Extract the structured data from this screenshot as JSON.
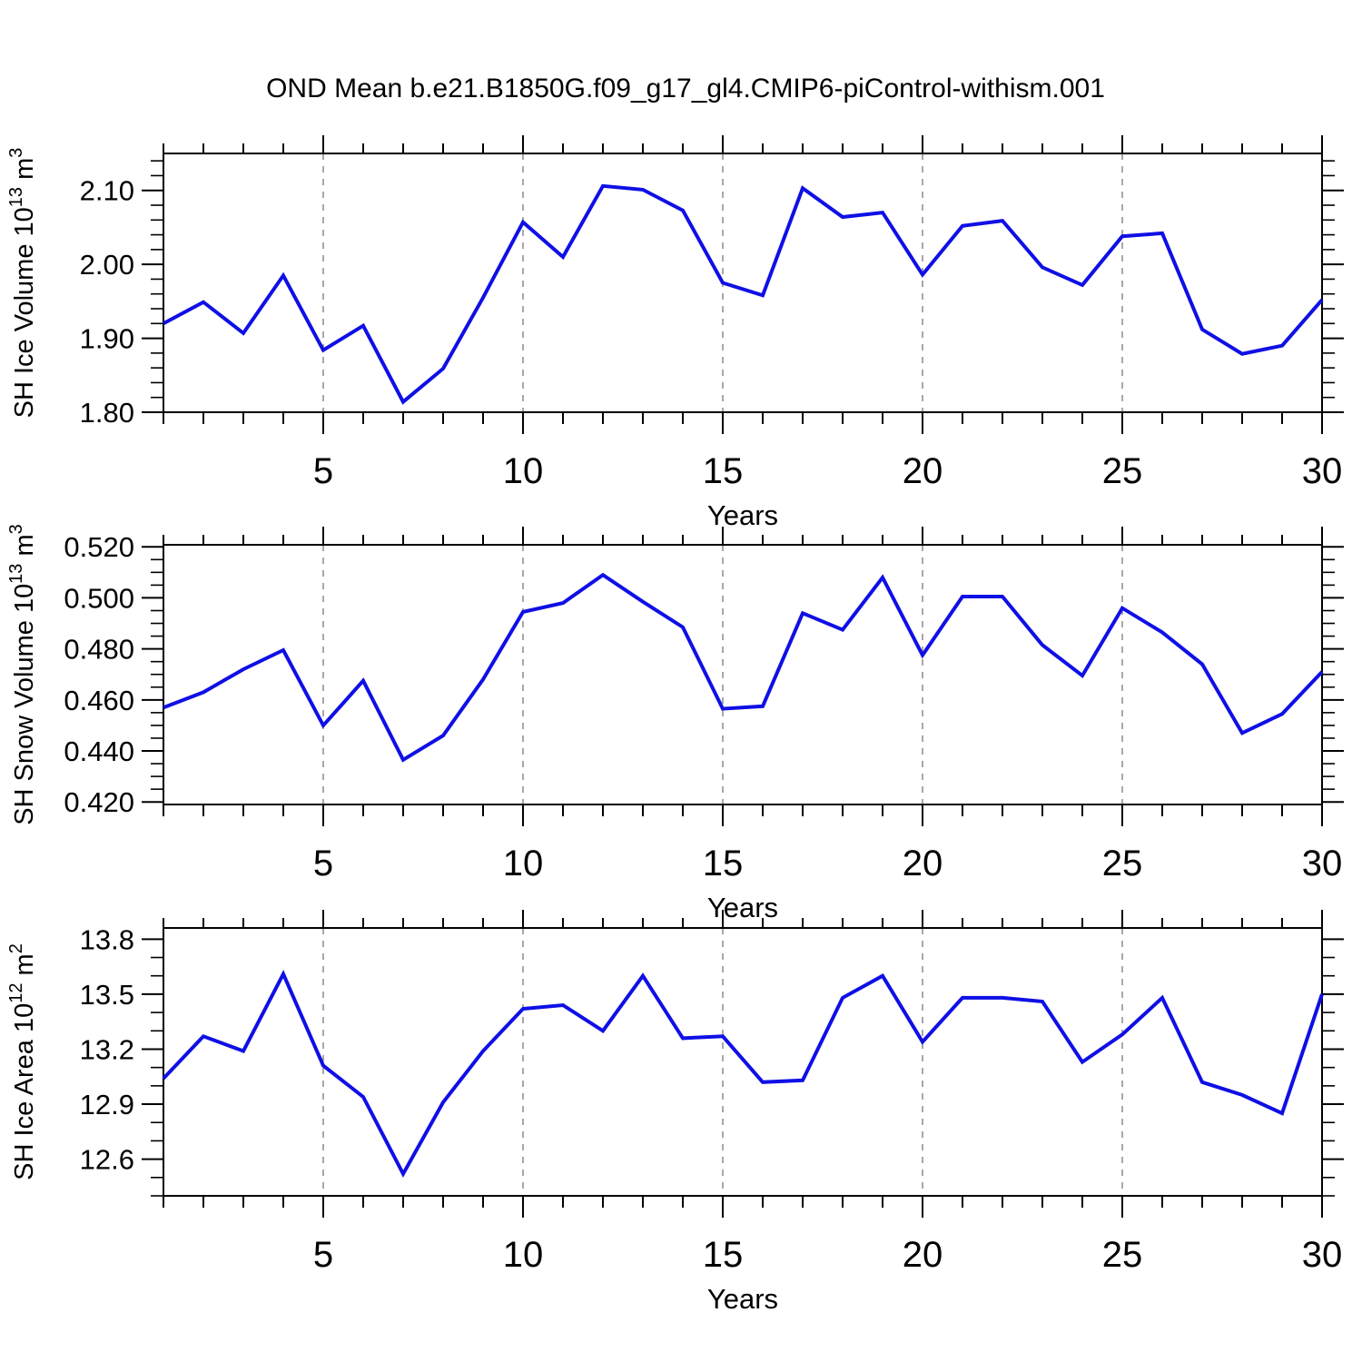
{
  "title": "OND Mean b.e21.B1850G.f09_g17_gl4.CMIP6-piControl-withism.001",
  "colors": {
    "line": "#0f0fe6",
    "grid": "#8c8c8c",
    "axis": "#000000",
    "background": "#ffffff"
  },
  "x_axis": {
    "label": "Years",
    "range": [
      1,
      30
    ],
    "major_ticks": [
      5,
      10,
      15,
      20,
      25,
      30
    ],
    "major_tick_labels": [
      "5",
      "10",
      "15",
      "20",
      "25",
      "30"
    ],
    "minor_step": 1,
    "grid_years": [
      5,
      10,
      15,
      20,
      25
    ]
  },
  "chart_data": [
    {
      "type": "line",
      "name": "sh-ice-volume",
      "ylabel_text": "SH Ice Volume 10^13 m^3",
      "ylabel_segments": [
        [
          "t",
          "SH Ice Volume 10"
        ],
        [
          "s",
          "13"
        ],
        [
          "t",
          " m"
        ],
        [
          "s",
          "3"
        ]
      ],
      "xlabel": "Years",
      "x": [
        1,
        2,
        3,
        4,
        5,
        6,
        7,
        8,
        9,
        10,
        11,
        12,
        13,
        14,
        15,
        16,
        17,
        18,
        19,
        20,
        21,
        22,
        23,
        24,
        25,
        26,
        27,
        28,
        29,
        30
      ],
      "values": [
        1.92,
        1.949,
        1.907,
        1.985,
        1.884,
        1.917,
        1.814,
        1.859,
        1.955,
        2.057,
        2.01,
        2.106,
        2.101,
        2.073,
        1.975,
        1.958,
        2.103,
        2.064,
        2.07,
        1.986,
        2.052,
        2.059,
        1.996,
        1.972,
        2.038,
        2.042,
        1.912,
        1.879,
        1.89,
        1.952
      ],
      "ylim": [
        1.8,
        2.15
      ],
      "ytick_values": [
        1.8,
        1.9,
        2.0,
        2.1
      ],
      "ytick_labels": [
        "1.80",
        "1.90",
        "2.00",
        "2.10"
      ],
      "yminor_step": 0.02,
      "grid": "vertical-dashed",
      "legend": "none"
    },
    {
      "type": "line",
      "name": "sh-snow-volume",
      "ylabel_text": "SH Snow Volume 10^13 m^3",
      "ylabel_segments": [
        [
          "t",
          "SH Snow Volume 10"
        ],
        [
          "s",
          "13"
        ],
        [
          "t",
          " m"
        ],
        [
          "s",
          "3"
        ]
      ],
      "xlabel": "Years",
      "x": [
        1,
        2,
        3,
        4,
        5,
        6,
        7,
        8,
        9,
        10,
        11,
        12,
        13,
        14,
        15,
        16,
        17,
        18,
        19,
        20,
        21,
        22,
        23,
        24,
        25,
        26,
        27,
        28,
        29,
        30
      ],
      "values": [
        0.457,
        0.463,
        0.472,
        0.4795,
        0.45,
        0.4675,
        0.4365,
        0.446,
        0.468,
        0.4945,
        0.498,
        0.509,
        0.4985,
        0.4885,
        0.4565,
        0.4575,
        0.494,
        0.4875,
        0.508,
        0.4775,
        0.5005,
        0.5005,
        0.4815,
        0.4695,
        0.496,
        0.4865,
        0.474,
        0.447,
        0.4545,
        0.471
      ],
      "ylim": [
        0.419,
        0.5208
      ],
      "ytick_values": [
        0.42,
        0.44,
        0.46,
        0.48,
        0.5,
        0.52
      ],
      "ytick_labels": [
        "0.420",
        "0.440",
        "0.460",
        "0.480",
        "0.500",
        "0.520"
      ],
      "yminor_step": 0.005,
      "grid": "vertical-dashed",
      "legend": "none"
    },
    {
      "type": "line",
      "name": "sh-ice-area",
      "ylabel_text": "SH Ice Area 10^12 m^2",
      "ylabel_segments": [
        [
          "t",
          "SH Ice Area 10"
        ],
        [
          "s",
          "12"
        ],
        [
          "t",
          " m"
        ],
        [
          "s",
          "2"
        ]
      ],
      "xlabel": "Years",
      "x": [
        1,
        2,
        3,
        4,
        5,
        6,
        7,
        8,
        9,
        10,
        11,
        12,
        13,
        14,
        15,
        16,
        17,
        18,
        19,
        20,
        21,
        22,
        23,
        24,
        25,
        26,
        27,
        28,
        29,
        30
      ],
      "values": [
        13.04,
        13.27,
        13.19,
        13.61,
        13.11,
        12.94,
        12.52,
        12.91,
        13.19,
        13.42,
        13.44,
        13.3,
        13.6,
        13.26,
        13.27,
        13.02,
        13.03,
        13.48,
        13.6,
        13.24,
        13.48,
        13.48,
        13.46,
        13.13,
        13.28,
        13.48,
        13.02,
        12.95,
        12.85,
        13.5
      ],
      "ylim": [
        12.4,
        13.861
      ],
      "ytick_values": [
        12.6,
        12.9,
        13.2,
        13.5,
        13.8
      ],
      "ytick_labels": [
        "12.6",
        "12.9",
        "13.2",
        "13.5",
        "13.8"
      ],
      "yminor_step": 0.1,
      "grid": "vertical-dashed",
      "legend": "none"
    }
  ]
}
